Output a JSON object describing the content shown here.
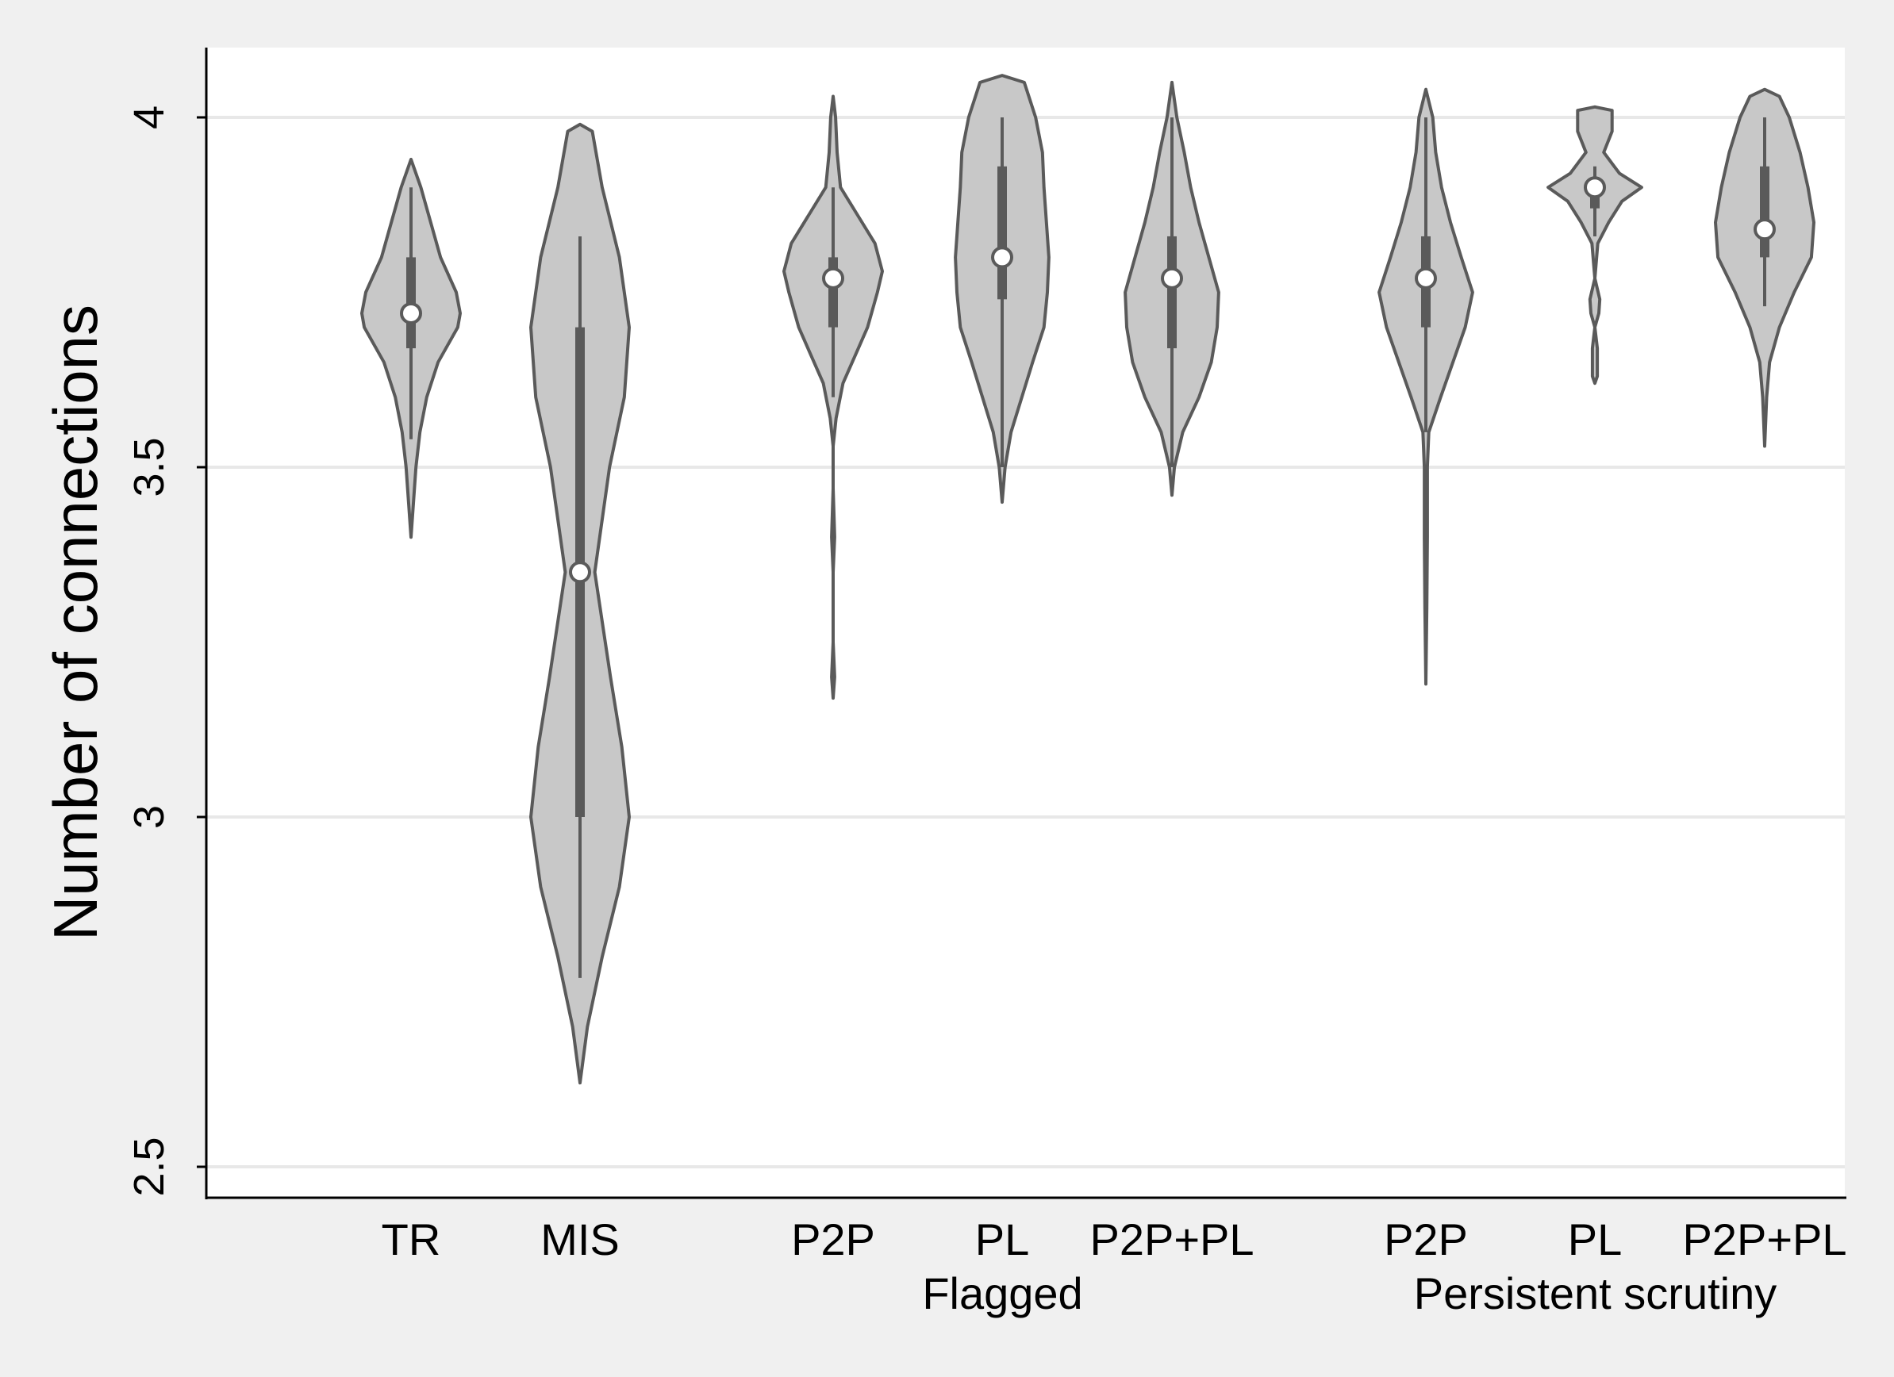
{
  "chart_data": {
    "type": "violin",
    "ylabel": "Number of connections",
    "ylim": [
      2.45,
      4.1
    ],
    "yticks": [
      2.5,
      3,
      3.5,
      4
    ],
    "ytick_labels": [
      "2.5",
      "3",
      "3.5",
      "4"
    ],
    "grid": true,
    "groups": [
      {
        "label": "",
        "categories": [
          "TR",
          "MIS"
        ]
      },
      {
        "label": "Flagged",
        "categories": [
          "P2P",
          "PL",
          "P2P+PL"
        ]
      },
      {
        "label": "Persistent scrutiny",
        "categories": [
          "P2P",
          "PL",
          "P2P+PL"
        ]
      }
    ],
    "series": [
      {
        "category": "TR",
        "group": "",
        "median": 3.72,
        "q1": 3.67,
        "q3": 3.8,
        "whisker_low": 3.54,
        "whisker_high": 3.9,
        "density": [
          [
            3.4,
            0.0
          ],
          [
            3.45,
            0.05
          ],
          [
            3.5,
            0.1
          ],
          [
            3.55,
            0.18
          ],
          [
            3.6,
            0.32
          ],
          [
            3.65,
            0.55
          ],
          [
            3.7,
            0.95
          ],
          [
            3.72,
            1.0
          ],
          [
            3.75,
            0.92
          ],
          [
            3.8,
            0.6
          ],
          [
            3.85,
            0.4
          ],
          [
            3.9,
            0.2
          ],
          [
            3.94,
            0.0
          ]
        ]
      },
      {
        "category": "MIS",
        "group": "",
        "median": 3.35,
        "q1": 3.0,
        "q3": 3.7,
        "whisker_low": 2.77,
        "whisker_high": 3.83,
        "density": [
          [
            2.62,
            0.0
          ],
          [
            2.7,
            0.15
          ],
          [
            2.8,
            0.45
          ],
          [
            2.9,
            0.8
          ],
          [
            3.0,
            1.0
          ],
          [
            3.1,
            0.85
          ],
          [
            3.2,
            0.62
          ],
          [
            3.35,
            0.3
          ],
          [
            3.5,
            0.6
          ],
          [
            3.6,
            0.9
          ],
          [
            3.7,
            1.0
          ],
          [
            3.8,
            0.8
          ],
          [
            3.9,
            0.45
          ],
          [
            3.98,
            0.25
          ],
          [
            3.99,
            0.0
          ]
        ]
      },
      {
        "category": "P2P",
        "group": "Flagged",
        "median": 3.77,
        "q1": 3.7,
        "q3": 3.8,
        "whisker_low": 3.6,
        "whisker_high": 3.9,
        "density": [
          [
            3.17,
            0.0
          ],
          [
            3.2,
            0.03
          ],
          [
            3.25,
            0.0
          ],
          [
            3.35,
            0.0
          ],
          [
            3.4,
            0.03
          ],
          [
            3.47,
            0.0
          ],
          [
            3.53,
            0.0
          ],
          [
            3.57,
            0.06
          ],
          [
            3.62,
            0.2
          ],
          [
            3.66,
            0.45
          ],
          [
            3.7,
            0.7
          ],
          [
            3.75,
            0.9
          ],
          [
            3.78,
            1.0
          ],
          [
            3.82,
            0.85
          ],
          [
            3.86,
            0.5
          ],
          [
            3.9,
            0.15
          ],
          [
            3.95,
            0.08
          ],
          [
            4.0,
            0.05
          ],
          [
            4.03,
            0.0
          ]
        ]
      },
      {
        "category": "PL",
        "group": "Flagged",
        "median": 3.8,
        "q1": 3.74,
        "q3": 3.93,
        "whisker_low": 3.5,
        "whisker_high": 4.0,
        "density": [
          [
            3.45,
            0.0
          ],
          [
            3.5,
            0.06
          ],
          [
            3.55,
            0.18
          ],
          [
            3.6,
            0.4
          ],
          [
            3.65,
            0.62
          ],
          [
            3.7,
            0.85
          ],
          [
            3.75,
            0.92
          ],
          [
            3.8,
            0.95
          ],
          [
            3.85,
            0.9
          ],
          [
            3.9,
            0.85
          ],
          [
            3.95,
            0.82
          ],
          [
            4.0,
            0.68
          ],
          [
            4.05,
            0.45
          ],
          [
            4.06,
            0.0
          ]
        ]
      },
      {
        "category": "P2P+PL",
        "group": "Flagged",
        "median": 3.77,
        "q1": 3.67,
        "q3": 3.83,
        "whisker_low": 3.5,
        "whisker_high": 4.0,
        "density": [
          [
            3.46,
            0.0
          ],
          [
            3.5,
            0.05
          ],
          [
            3.55,
            0.22
          ],
          [
            3.6,
            0.55
          ],
          [
            3.65,
            0.8
          ],
          [
            3.7,
            0.92
          ],
          [
            3.75,
            0.95
          ],
          [
            3.8,
            0.75
          ],
          [
            3.85,
            0.55
          ],
          [
            3.9,
            0.38
          ],
          [
            3.95,
            0.25
          ],
          [
            4.0,
            0.1
          ],
          [
            4.05,
            0.0
          ]
        ]
      },
      {
        "category": "P2P",
        "group": "Persistent scrutiny",
        "median": 3.77,
        "q1": 3.7,
        "q3": 3.83,
        "whisker_low": 3.55,
        "whisker_high": 4.0,
        "density": [
          [
            3.19,
            0.0
          ],
          [
            3.3,
            0.02
          ],
          [
            3.4,
            0.03
          ],
          [
            3.5,
            0.03
          ],
          [
            3.55,
            0.06
          ],
          [
            3.6,
            0.3
          ],
          [
            3.65,
            0.55
          ],
          [
            3.7,
            0.8
          ],
          [
            3.75,
            0.95
          ],
          [
            3.8,
            0.72
          ],
          [
            3.85,
            0.5
          ],
          [
            3.9,
            0.32
          ],
          [
            3.95,
            0.2
          ],
          [
            4.0,
            0.14
          ],
          [
            4.04,
            0.0
          ]
        ]
      },
      {
        "category": "PL",
        "group": "Persistent scrutiny",
        "median": 3.9,
        "q1": 3.87,
        "q3": 3.9,
        "whisker_low": 3.83,
        "whisker_high": 3.93,
        "density": [
          [
            3.62,
            0.0
          ],
          [
            3.63,
            0.05
          ],
          [
            3.67,
            0.05
          ],
          [
            3.7,
            0.0
          ],
          [
            3.72,
            0.08
          ],
          [
            3.74,
            0.1
          ],
          [
            3.77,
            0.0
          ],
          [
            3.82,
            0.06
          ],
          [
            3.85,
            0.28
          ],
          [
            3.88,
            0.55
          ],
          [
            3.9,
            0.95
          ],
          [
            3.92,
            0.5
          ],
          [
            3.95,
            0.18
          ],
          [
            3.98,
            0.35
          ],
          [
            4.01,
            0.35
          ],
          [
            4.015,
            0.0
          ]
        ]
      },
      {
        "category": "P2P+PL",
        "group": "Persistent scrutiny",
        "median": 3.84,
        "q1": 3.8,
        "q3": 3.93,
        "whisker_low": 3.73,
        "whisker_high": 4.0,
        "density": [
          [
            3.53,
            0.0
          ],
          [
            3.6,
            0.04
          ],
          [
            3.65,
            0.1
          ],
          [
            3.7,
            0.3
          ],
          [
            3.75,
            0.6
          ],
          [
            3.8,
            0.95
          ],
          [
            3.85,
            1.0
          ],
          [
            3.9,
            0.88
          ],
          [
            3.95,
            0.72
          ],
          [
            4.0,
            0.5
          ],
          [
            4.03,
            0.3
          ],
          [
            4.04,
            0.0
          ]
        ]
      }
    ],
    "colors": {
      "violin_fill": "#c8c8c8",
      "violin_stroke": "#5a5a5a",
      "box": "#5a5a5a",
      "median_fill": "#ffffff",
      "plot_bg": "#ffffff",
      "page_bg": "#f0f0f0",
      "grid": "#e8e8e8"
    }
  }
}
